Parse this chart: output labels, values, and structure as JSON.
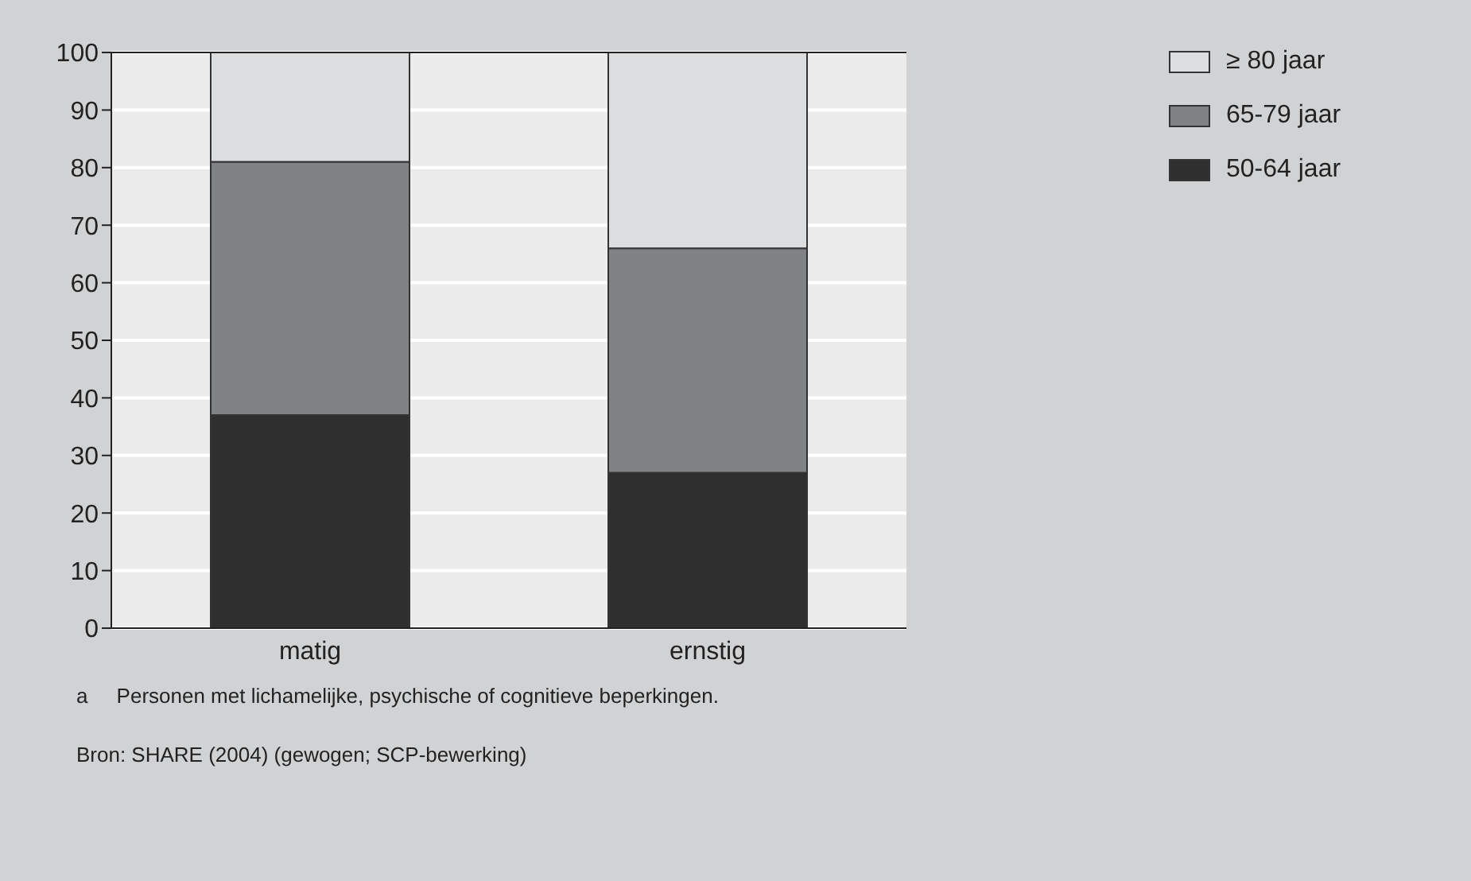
{
  "chart_data": {
    "type": "bar",
    "stacked": true,
    "categories": [
      "matig",
      "ernstig"
    ],
    "series": [
      {
        "name": "50-64 jaar",
        "color": "#302f30",
        "values": [
          37,
          27
        ]
      },
      {
        "name": "65-79 jaar",
        "color": "#818285",
        "values": [
          44,
          39
        ]
      },
      {
        "name": "≥ 80 jaar",
        "color": "#dcdddf",
        "values": [
          19,
          34
        ]
      }
    ],
    "ylim": [
      0,
      100
    ],
    "yticks": [
      0,
      10,
      20,
      30,
      40,
      50,
      60,
      70,
      80,
      90,
      100
    ],
    "grid": "y",
    "legend": "top right",
    "annotations": [
      "a     Personen met lichamelijke, psychische of cognitieve beperkingen.",
      "Bron: SHARE (2004) (gewogen; SCP-bewerking)"
    ]
  }
}
